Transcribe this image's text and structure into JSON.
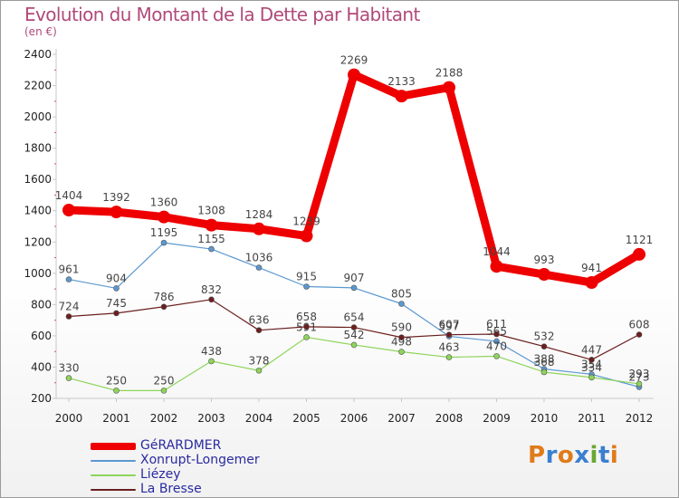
{
  "title": "Evolution du Montant de la Dette par Habitant",
  "subtitle": "(en €)",
  "brand": {
    "letters": [
      "P",
      "r",
      "o",
      "x",
      "i",
      "t",
      "i"
    ],
    "colors": [
      "#e07b1a",
      "#3a7fd0",
      "#e07b1a",
      "#3a7fd0",
      "#6aa832",
      "#3a7fd0",
      "#e07b1a"
    ]
  },
  "chart_data": {
    "type": "line",
    "title": "Evolution du Montant de la Dette par Habitant",
    "ylabel": "(en €)",
    "ylim": [
      200,
      2400
    ],
    "yticks": [
      200,
      400,
      600,
      800,
      1000,
      1200,
      1400,
      1600,
      1800,
      2000,
      2200,
      2400
    ],
    "grid": false,
    "legend_position": "bottom-left",
    "x": [
      "2000",
      "2001",
      "2002",
      "2003",
      "2004",
      "2005",
      "2006",
      "2007",
      "2008",
      "2009",
      "2010",
      "2011",
      "2012"
    ],
    "series": [
      {
        "name": "GéRARDMER",
        "color": "#ee0000",
        "width": 9,
        "values": [
          1404,
          1392,
          1360,
          1308,
          1284,
          1239,
          2269,
          2133,
          2188,
          1044,
          993,
          941,
          1121
        ],
        "labels": [
          "1404",
          "1392",
          "1360",
          "1308",
          "1284",
          "1239",
          "2269",
          "2133",
          "2188",
          "1044",
          "993",
          "941",
          "1121"
        ]
      },
      {
        "name": "Xonrupt-Longemer",
        "color": "#5b98d0",
        "width": 1.2,
        "values": [
          961,
          904,
          1195,
          1155,
          1036,
          915,
          907,
          805,
          597,
          565,
          388,
          354,
          273
        ],
        "labels": [
          "961",
          "904",
          "1195",
          "1155",
          "1036",
          "915",
          "907",
          "805",
          "597",
          "565",
          "388",
          "354",
          "273"
        ]
      },
      {
        "name": "Liézey",
        "color": "#8ed45a",
        "width": 1.2,
        "values": [
          330,
          250,
          250,
          438,
          378,
          591,
          542,
          498,
          463,
          470,
          368,
          334,
          293
        ],
        "labels": [
          "330",
          "250",
          "250",
          "438",
          "378",
          "591",
          "542",
          "498",
          "463",
          "470",
          "368",
          "334",
          "293"
        ]
      },
      {
        "name": "La Bresse",
        "color": "#6b1f1f",
        "width": 1.2,
        "values": [
          724,
          745,
          786,
          832,
          636,
          658,
          654,
          590,
          607,
          611,
          532,
          447,
          608
        ],
        "labels": [
          "724",
          "745",
          "786",
          "832",
          "636",
          "658",
          "654",
          "590",
          "607",
          "611",
          "532",
          "447",
          "608"
        ]
      }
    ]
  }
}
